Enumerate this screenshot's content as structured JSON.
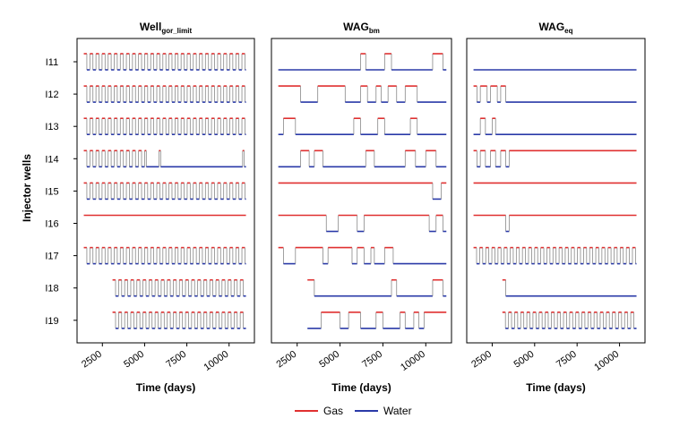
{
  "chart_data": {
    "type": "line",
    "y_axis_label": "Injector wells",
    "x_axis_label": "Time (days)",
    "x_ticks": [
      2500,
      5000,
      7500,
      10000
    ],
    "x_range": [
      1000,
      11500
    ],
    "wells": [
      "I11",
      "I12",
      "I13",
      "I14",
      "I15",
      "I16",
      "I17",
      "I18",
      "I19"
    ],
    "legend": [
      {
        "name": "Gas",
        "color": "#e03030"
      },
      {
        "name": "Water",
        "color": "#2a3aa8"
      }
    ],
    "panels": [
      {
        "title_main": "Well",
        "title_sub": "gor_limit",
        "wells": {
          "I11": {
            "start": 1400,
            "end": 11000,
            "cycle": 180,
            "mode": "alt"
          },
          "I12": {
            "start": 1400,
            "end": 11000,
            "cycle": 180,
            "mode": "alt"
          },
          "I13": {
            "start": 1400,
            "end": 11000,
            "cycle": 180,
            "mode": "alt"
          },
          "I14": {
            "start": 1400,
            "end": 11000,
            "cycle": 180,
            "mode": "alt_until",
            "until": 4900,
            "after": [
              [
                4900,
                "water"
              ],
              [
                5000,
                "gas"
              ],
              [
                5100,
                "water"
              ],
              [
                5850,
                "gas"
              ],
              [
                5950,
                "water"
              ],
              [
                10800,
                "gas"
              ],
              [
                10900,
                "water"
              ]
            ]
          },
          "I15": {
            "start": 1400,
            "end": 11000,
            "cycle": 180,
            "mode": "alt"
          },
          "I16": {
            "start": 1400,
            "end": 11000,
            "mode": "steps",
            "steps": [
              [
                1400,
                "gas"
              ]
            ]
          },
          "I17": {
            "start": 1400,
            "end": 11000,
            "cycle": 180,
            "mode": "alt"
          },
          "I18": {
            "start": 3100,
            "end": 11000,
            "cycle": 180,
            "mode": "alt"
          },
          "I19": {
            "start": 3100,
            "end": 11000,
            "cycle": 180,
            "mode": "alt"
          }
        }
      },
      {
        "title_main": "WAG",
        "title_sub": "bm",
        "wells": {
          "I11": {
            "start": 1400,
            "end": 11200,
            "mode": "steps",
            "steps": [
              [
                1400,
                "water"
              ],
              [
                6200,
                "gas"
              ],
              [
                6500,
                "water"
              ],
              [
                7600,
                "gas"
              ],
              [
                8000,
                "water"
              ],
              [
                10400,
                "gas"
              ],
              [
                11000,
                "water"
              ]
            ]
          },
          "I12": {
            "start": 1400,
            "end": 11200,
            "mode": "steps",
            "steps": [
              [
                1400,
                "gas"
              ],
              [
                2700,
                "water"
              ],
              [
                3700,
                "gas"
              ],
              [
                5300,
                "water"
              ],
              [
                6200,
                "gas"
              ],
              [
                6600,
                "water"
              ],
              [
                7100,
                "gas"
              ],
              [
                7400,
                "water"
              ],
              [
                7800,
                "gas"
              ],
              [
                8300,
                "water"
              ],
              [
                8800,
                "gas"
              ],
              [
                9500,
                "water"
              ]
            ]
          },
          "I13": {
            "start": 1400,
            "end": 11200,
            "mode": "steps",
            "steps": [
              [
                1400,
                "water"
              ],
              [
                1700,
                "gas"
              ],
              [
                2400,
                "water"
              ],
              [
                5800,
                "gas"
              ],
              [
                6200,
                "water"
              ],
              [
                7200,
                "gas"
              ],
              [
                7600,
                "water"
              ],
              [
                9100,
                "gas"
              ],
              [
                9500,
                "water"
              ]
            ]
          },
          "I14": {
            "start": 1400,
            "end": 11200,
            "mode": "steps",
            "steps": [
              [
                1400,
                "water"
              ],
              [
                2700,
                "gas"
              ],
              [
                3200,
                "water"
              ],
              [
                3500,
                "gas"
              ],
              [
                4000,
                "water"
              ],
              [
                6500,
                "gas"
              ],
              [
                7000,
                "water"
              ],
              [
                8800,
                "gas"
              ],
              [
                9400,
                "water"
              ],
              [
                10000,
                "gas"
              ],
              [
                10600,
                "water"
              ]
            ]
          },
          "I15": {
            "start": 1400,
            "end": 11200,
            "mode": "steps",
            "steps": [
              [
                1400,
                "gas"
              ],
              [
                10400,
                "water"
              ],
              [
                10900,
                "gas"
              ]
            ]
          },
          "I16": {
            "start": 1400,
            "end": 11200,
            "mode": "steps",
            "steps": [
              [
                1400,
                "gas"
              ],
              [
                4200,
                "water"
              ],
              [
                4900,
                "gas"
              ],
              [
                6000,
                "water"
              ],
              [
                6400,
                "gas"
              ],
              [
                10200,
                "water"
              ],
              [
                10600,
                "gas"
              ],
              [
                11000,
                "water"
              ]
            ]
          },
          "I17": {
            "start": 1400,
            "end": 11200,
            "mode": "steps",
            "steps": [
              [
                1400,
                "gas"
              ],
              [
                1700,
                "water"
              ],
              [
                2400,
                "gas"
              ],
              [
                4000,
                "water"
              ],
              [
                4300,
                "gas"
              ],
              [
                5700,
                "water"
              ],
              [
                6000,
                "gas"
              ],
              [
                6400,
                "water"
              ],
              [
                6800,
                "gas"
              ],
              [
                7000,
                "water"
              ],
              [
                7600,
                "gas"
              ],
              [
                8100,
                "water"
              ]
            ]
          },
          "I18": {
            "start": 3100,
            "end": 11200,
            "mode": "steps",
            "steps": [
              [
                3100,
                "gas"
              ],
              [
                3500,
                "water"
              ],
              [
                8000,
                "gas"
              ],
              [
                8300,
                "water"
              ],
              [
                10400,
                "gas"
              ],
              [
                11000,
                "water"
              ]
            ]
          },
          "I19": {
            "start": 3100,
            "end": 11200,
            "mode": "steps",
            "steps": [
              [
                3100,
                "water"
              ],
              [
                3900,
                "gas"
              ],
              [
                5000,
                "water"
              ],
              [
                5500,
                "gas"
              ],
              [
                6200,
                "water"
              ],
              [
                7100,
                "gas"
              ],
              [
                7500,
                "water"
              ],
              [
                8500,
                "gas"
              ],
              [
                8800,
                "water"
              ],
              [
                9300,
                "gas"
              ],
              [
                9600,
                "water"
              ],
              [
                9900,
                "gas"
              ]
            ]
          }
        }
      },
      {
        "title_main": "WAG",
        "title_sub": "eq",
        "wells": {
          "I11": {
            "start": 1400,
            "end": 11000,
            "mode": "steps",
            "steps": [
              [
                1400,
                "water"
              ]
            ]
          },
          "I12": {
            "start": 1400,
            "end": 11000,
            "mode": "steps",
            "steps": [
              [
                1400,
                "gas"
              ],
              [
                1600,
                "water"
              ],
              [
                1800,
                "gas"
              ],
              [
                2200,
                "water"
              ],
              [
                2400,
                "gas"
              ],
              [
                2800,
                "water"
              ],
              [
                3000,
                "gas"
              ],
              [
                3300,
                "water"
              ]
            ]
          },
          "I13": {
            "start": 1400,
            "end": 11000,
            "mode": "steps",
            "steps": [
              [
                1400,
                "water"
              ],
              [
                1800,
                "gas"
              ],
              [
                2100,
                "water"
              ],
              [
                2500,
                "gas"
              ],
              [
                2700,
                "water"
              ]
            ]
          },
          "I14": {
            "start": 1400,
            "end": 11000,
            "mode": "steps",
            "steps": [
              [
                1400,
                "gas"
              ],
              [
                1600,
                "water"
              ],
              [
                1800,
                "gas"
              ],
              [
                2100,
                "water"
              ],
              [
                2400,
                "gas"
              ],
              [
                2700,
                "water"
              ],
              [
                3000,
                "gas"
              ],
              [
                3300,
                "water"
              ],
              [
                3500,
                "gas"
              ]
            ]
          },
          "I15": {
            "start": 1400,
            "end": 11000,
            "mode": "steps",
            "steps": [
              [
                1400,
                "gas"
              ]
            ]
          },
          "I16": {
            "start": 1400,
            "end": 11000,
            "mode": "steps",
            "steps": [
              [
                1400,
                "gas"
              ],
              [
                3300,
                "water"
              ],
              [
                3500,
                "gas"
              ]
            ]
          },
          "I17": {
            "start": 1400,
            "end": 11000,
            "cycle": 180,
            "mode": "alt"
          },
          "I18": {
            "start": 3100,
            "end": 11000,
            "mode": "steps",
            "steps": [
              [
                3100,
                "gas"
              ],
              [
                3300,
                "water"
              ]
            ]
          },
          "I19": {
            "start": 3100,
            "end": 11000,
            "cycle": 180,
            "mode": "alt"
          }
        }
      }
    ]
  }
}
